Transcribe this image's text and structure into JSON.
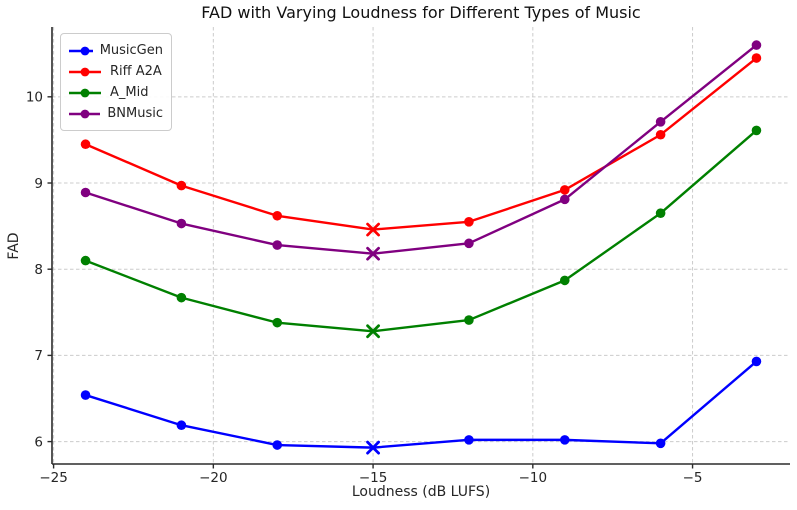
{
  "chart_data": {
    "type": "line",
    "title": "FAD with Varying Loudness for Different Types of Music",
    "xlabel": "Loudness (dB LUFS)",
    "ylabel": "FAD",
    "x": [
      -24,
      -21,
      -18,
      -15,
      -12,
      -9,
      -6,
      -3
    ],
    "series": [
      {
        "name": "MusicGen",
        "color": "#0000ff",
        "values": [
          6.54,
          6.19,
          5.96,
          5.93,
          6.02,
          6.02,
          5.98,
          6.93
        ]
      },
      {
        "name": "Riff A2A",
        "color": "#ff0000",
        "values": [
          9.45,
          8.97,
          8.62,
          8.46,
          8.55,
          8.92,
          9.56,
          10.45
        ]
      },
      {
        "name": "A_Mid",
        "color": "#008000",
        "values": [
          8.1,
          7.67,
          7.38,
          7.28,
          7.41,
          7.87,
          8.65,
          9.61
        ]
      },
      {
        "name": "BNMusic",
        "color": "#800080",
        "values": [
          8.89,
          8.53,
          8.28,
          8.18,
          8.3,
          8.81,
          9.71,
          10.6
        ]
      }
    ],
    "marker": "circle",
    "special_marker": {
      "shape": "x-cross",
      "at_x": -15
    },
    "x_ticks": [
      -25,
      -20,
      -15,
      -10,
      -5
    ],
    "y_ticks": [
      6,
      7,
      8,
      9,
      10
    ],
    "xlim": [
      -25.05,
      -1.95
    ],
    "ylim": [
      5.74,
      10.81
    ],
    "grid": true,
    "grid_style": "dashed",
    "legend_position": "upper left",
    "colors": {
      "grid": "#cccccc",
      "spine": "#2b2b2b",
      "tick_text": "#262626",
      "title_text": "#111111",
      "background": "#ffffff"
    }
  }
}
